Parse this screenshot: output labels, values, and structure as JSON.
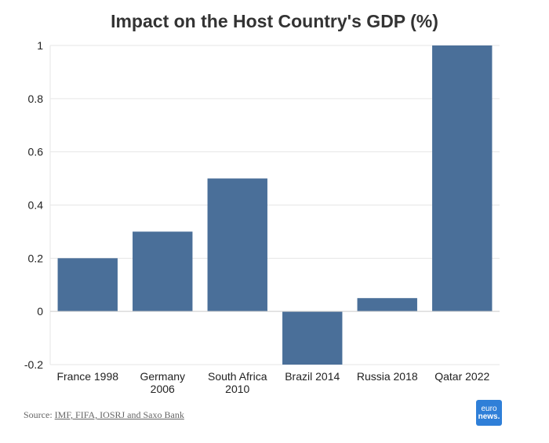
{
  "chart_data": {
    "type": "bar",
    "title": "Impact on the Host Country's GDP (%)",
    "categories": [
      [
        "France 1998"
      ],
      [
        "Germany",
        "2006"
      ],
      [
        "South Africa",
        "2010"
      ],
      [
        "Brazil 2014"
      ],
      [
        "Russia 2018"
      ],
      [
        "Qatar 2022"
      ]
    ],
    "values": [
      0.2,
      0.3,
      0.5,
      -0.2,
      0.05,
      1
    ],
    "ylim": [
      -0.2,
      1
    ],
    "yticks": [
      "1",
      "0.8",
      "0.6",
      "0.4",
      "0.2",
      "0",
      "-0.2"
    ],
    "ytick_values": [
      1,
      0.8,
      0.6,
      0.4,
      0.2,
      0,
      -0.2
    ],
    "grid": true,
    "bar_color": "#4a6f99"
  },
  "source": {
    "prefix": "Source: ",
    "links": "IMF, FIFA, IOSRJ and Saxo Bank"
  },
  "logo": {
    "line1": "euro",
    "line2": "news."
  }
}
